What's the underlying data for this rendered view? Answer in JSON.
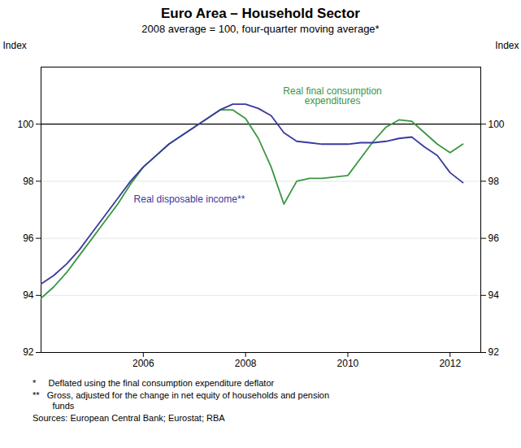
{
  "chart_data": {
    "type": "line",
    "title": "Euro Area – Household Sector",
    "subtitle": "2008 average = 100, four-quarter moving average*",
    "ylabel": "Index",
    "y2label": "Index",
    "x": [
      2004.0,
      2004.25,
      2004.5,
      2004.75,
      2005.0,
      2005.25,
      2005.5,
      2005.75,
      2006.0,
      2006.25,
      2006.5,
      2006.75,
      2007.0,
      2007.25,
      2007.5,
      2007.75,
      2008.0,
      2008.25,
      2008.5,
      2008.75,
      2009.0,
      2009.25,
      2009.5,
      2009.75,
      2010.0,
      2010.25,
      2010.5,
      2010.75,
      2011.0,
      2011.25,
      2011.5,
      2011.75,
      2012.0,
      2012.25
    ],
    "series": [
      {
        "name": "Real final consumption\nexpenditures",
        "color": "#3a9640",
        "values": [
          93.9,
          94.3,
          94.8,
          95.4,
          96.0,
          96.6,
          97.2,
          97.9,
          98.5,
          98.9,
          99.3,
          99.6,
          99.9,
          100.2,
          100.5,
          100.5,
          100.2,
          99.5,
          98.5,
          97.2,
          98.0,
          98.1,
          98.1,
          98.15,
          98.2,
          98.8,
          99.4,
          99.9,
          100.15,
          100.1,
          99.7,
          99.3,
          99.0,
          99.3
        ]
      },
      {
        "name": "Real disposable income**",
        "color": "#3939a0",
        "values": [
          94.4,
          94.7,
          95.1,
          95.6,
          96.2,
          96.8,
          97.4,
          98.0,
          98.5,
          98.9,
          99.3,
          99.6,
          99.9,
          100.2,
          100.5,
          100.7,
          100.7,
          100.55,
          100.3,
          99.7,
          99.4,
          99.35,
          99.3,
          99.3,
          99.3,
          99.35,
          99.35,
          99.4,
          99.5,
          99.55,
          99.2,
          98.9,
          98.3,
          97.95
        ]
      }
    ],
    "xlim": [
      2004.0,
      2012.6
    ],
    "xticks": [
      2006,
      2008,
      2010,
      2012
    ],
    "ylim": [
      92,
      102
    ],
    "yticks": [
      92,
      94,
      96,
      98,
      100
    ],
    "y2lim": [
      92,
      102
    ],
    "y2ticks": [
      92,
      94,
      96,
      98,
      100
    ],
    "grid": true,
    "baseline": 100,
    "annotations": [
      {
        "text": "Real final consumption\nexpenditures",
        "x": 2009.7,
        "y": 100.7,
        "color": "#3a9640"
      },
      {
        "text": "Real disposable income**",
        "x": 2006.9,
        "y": 97.5,
        "color": "#3939a0"
      }
    ],
    "footnotes": [
      "*     Deflated using the final consumption expenditure deflator",
      "**   Gross, adjusted for the change in net equity of households and pension\n        funds",
      "Sources: European Central Bank; Eurostat; RBA"
    ]
  }
}
